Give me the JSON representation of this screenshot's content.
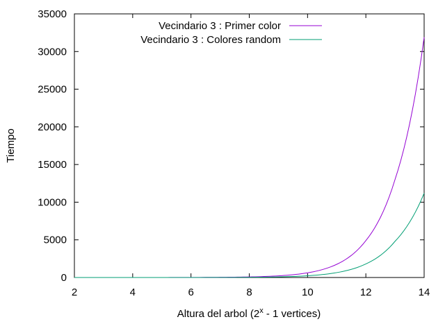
{
  "chart_data": {
    "type": "line",
    "title": "",
    "xlabel": "Altura del arbol (2",
    "xlabel_sup": "x",
    "xlabel_tail": " - 1 vertices)",
    "ylabel": "Tiempo",
    "xlim": [
      2,
      14
    ],
    "ylim": [
      0,
      35000
    ],
    "xticks": [
      2,
      4,
      6,
      8,
      10,
      12,
      14
    ],
    "yticks": [
      0,
      5000,
      10000,
      15000,
      20000,
      25000,
      30000,
      35000
    ],
    "grid": false,
    "legend_position": "top-center",
    "x": [
      2,
      3,
      4,
      5,
      6,
      7,
      8,
      9,
      10,
      11,
      12,
      13,
      14
    ],
    "series": [
      {
        "name": "Vecindario 3 : Primer color",
        "color": "#9400d3",
        "values": [
          0,
          1,
          2,
          5,
          12,
          30,
          80,
          220,
          620,
          1750,
          4900,
          13000,
          31900
        ]
      },
      {
        "name": "Vecindario 3 : Colores random",
        "color": "#009e73",
        "values": [
          0,
          0,
          1,
          2,
          4,
          10,
          28,
          80,
          230,
          650,
          1800,
          4800,
          11200
        ]
      }
    ]
  }
}
